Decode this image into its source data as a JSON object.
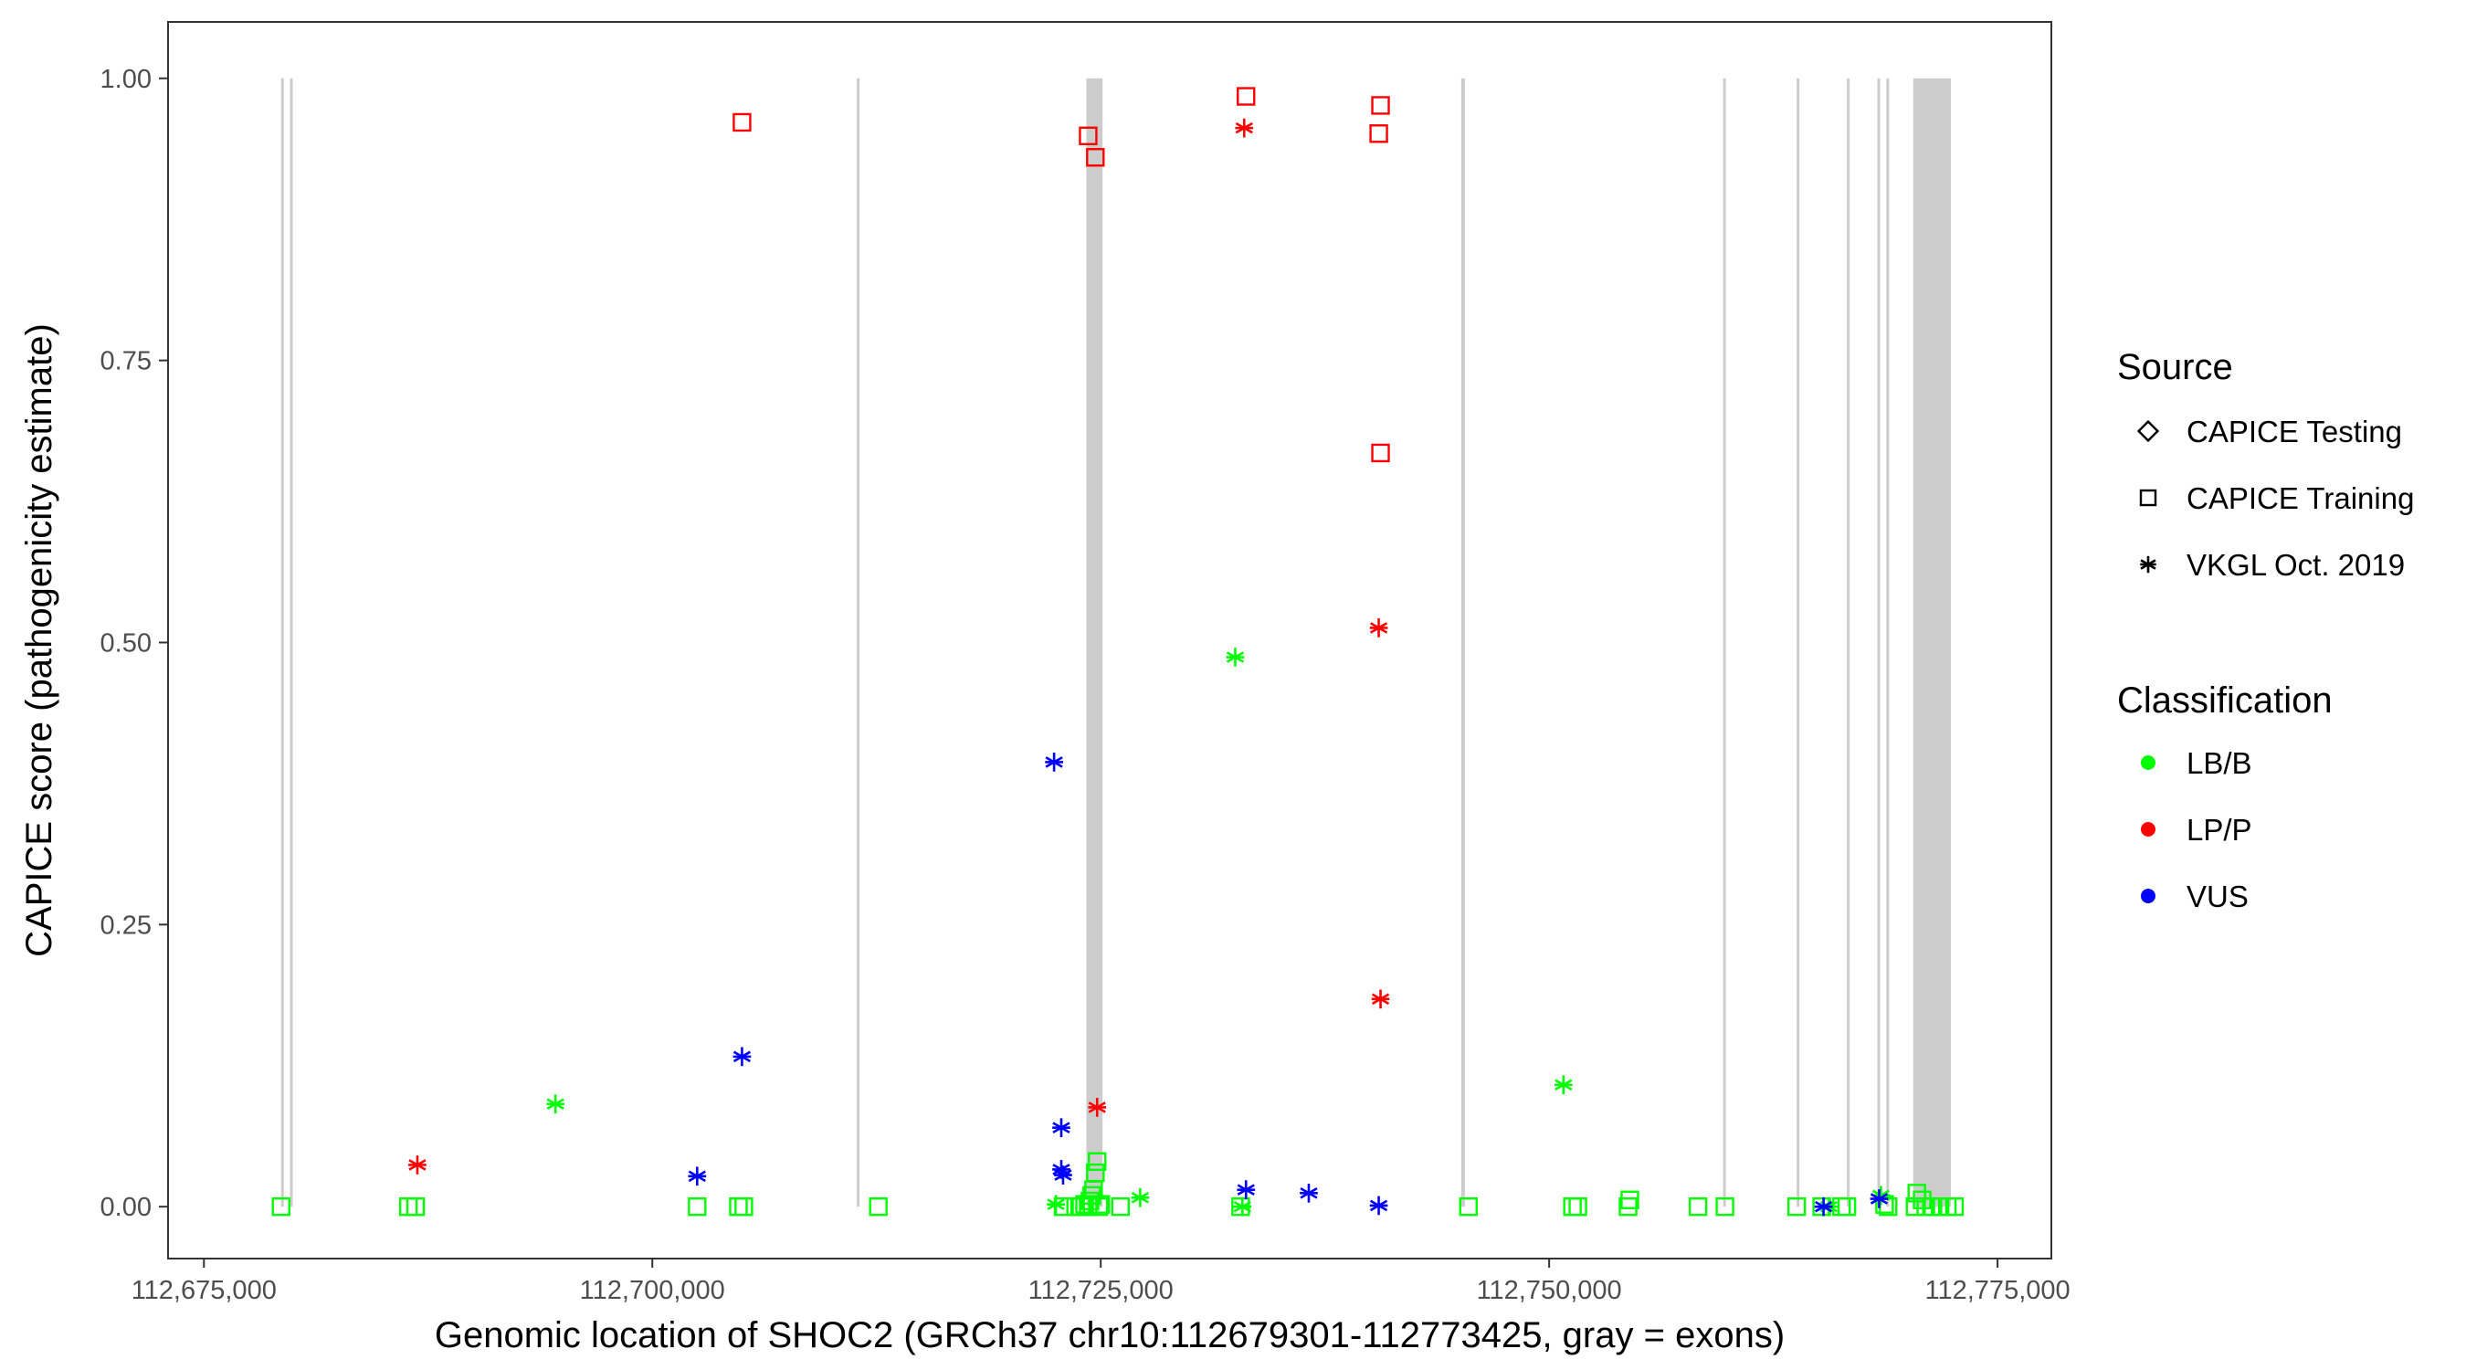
{
  "chart_data": {
    "type": "scatter",
    "title": "",
    "xlabel": "Genomic location of SHOC2 (GRCh37 chr10:112679301-112773425, gray = exons)",
    "ylabel": "CAPICE score (pathogenicity estimate)",
    "xlim": [
      112673000,
      112778000
    ],
    "ylim": [
      -0.046,
      1.05
    ],
    "grid": false,
    "x_ticks": [
      112675000,
      112700000,
      112725000,
      112750000,
      112775000
    ],
    "x_tick_labels": [
      "112,675,000",
      "112,700,000",
      "112,725,000",
      "112,750,000",
      "112,775,000"
    ],
    "y_ticks": [
      0,
      0.25,
      0.5,
      0.75,
      1
    ],
    "y_tick_labels": [
      "0.00",
      "0.25",
      "0.50",
      "0.75",
      "1.00"
    ],
    "exons": [
      [
        112679301,
        112679380
      ],
      [
        112679800,
        112679880
      ],
      [
        112711400,
        112711480
      ],
      [
        112724200,
        112725100
      ],
      [
        112745100,
        112745300
      ],
      [
        112759700,
        112759780
      ],
      [
        112763800,
        112763880
      ],
      [
        112766600,
        112766680
      ],
      [
        112768300,
        112768380
      ],
      [
        112768800,
        112768880
      ],
      [
        112770300,
        112772400
      ]
    ],
    "exon_color": "#cccccc",
    "legend": {
      "placement": "right",
      "shape_title": "Source",
      "shape_entries": [
        {
          "label": "CAPICE Testing",
          "shape": "diamond"
        },
        {
          "label": "CAPICE Training",
          "shape": "square"
        },
        {
          "label": "VKGL Oct. 2019",
          "shape": "asterisk"
        }
      ],
      "color_title": "Classification",
      "color_entries": [
        {
          "label": "LB/B",
          "color": "#00ff00"
        },
        {
          "label": "LP/P",
          "color": "#ff0000"
        },
        {
          "label": "VUS",
          "color": "#0000ff"
        }
      ]
    },
    "series": [
      {
        "source": "CAPICE Training",
        "classification": "LB/B",
        "shape": "square",
        "color": "#00ff00",
        "points": [
          [
            112679300,
            0.0
          ],
          [
            112686400,
            0.0
          ],
          [
            112686800,
            0.0
          ],
          [
            112702500,
            0.0
          ],
          [
            112704800,
            0.0
          ],
          [
            112705100,
            0.0
          ],
          [
            112712600,
            0.0
          ],
          [
            112722900,
            0.0
          ],
          [
            112723600,
            0.0
          ],
          [
            112723900,
            0.0
          ],
          [
            112724100,
            0.002
          ],
          [
            112724300,
            0.0
          ],
          [
            112724400,
            0.005
          ],
          [
            112724500,
            0.01
          ],
          [
            112724600,
            0.015
          ],
          [
            112724700,
            0.03
          ],
          [
            112724800,
            0.04
          ],
          [
            112724900,
            0.0
          ],
          [
            112725000,
            0.002
          ],
          [
            112726100,
            0.0
          ],
          [
            112732800,
            0.0
          ],
          [
            112745500,
            0.0
          ],
          [
            112751300,
            0.0
          ],
          [
            112751600,
            0.0
          ],
          [
            112754400,
            0.0
          ],
          [
            112754500,
            0.006
          ],
          [
            112758300,
            0.0
          ],
          [
            112759800,
            0.0
          ],
          [
            112763800,
            0.0
          ],
          [
            112765200,
            0.0
          ],
          [
            112766300,
            0.0
          ],
          [
            112766600,
            0.0
          ],
          [
            112768700,
            0.002
          ],
          [
            112768900,
            0.0
          ],
          [
            112770400,
            0.0
          ],
          [
            112770500,
            0.012
          ],
          [
            112770800,
            0.006
          ],
          [
            112771000,
            0.0
          ],
          [
            112771400,
            0.0
          ],
          [
            112771800,
            0.0
          ],
          [
            112772200,
            0.0
          ],
          [
            112772600,
            0.0
          ]
        ]
      },
      {
        "source": "CAPICE Training",
        "classification": "LP/P",
        "shape": "square",
        "color": "#ff0000",
        "points": [
          [
            112705000,
            0.961
          ],
          [
            112724300,
            0.949
          ],
          [
            112724700,
            0.93
          ],
          [
            112733100,
            0.984
          ],
          [
            112740600,
            0.976
          ],
          [
            112740500,
            0.951
          ],
          [
            112740600,
            0.668
          ]
        ]
      },
      {
        "source": "VKGL Oct. 2019",
        "classification": "LB/B",
        "shape": "asterisk",
        "color": "#00ff00",
        "points": [
          [
            112694600,
            0.091
          ],
          [
            112722500,
            0.002
          ],
          [
            112727200,
            0.008
          ],
          [
            112732500,
            0.487
          ],
          [
            112732900,
            0.0
          ],
          [
            112750800,
            0.108
          ],
          [
            112765600,
            0.0
          ],
          [
            112768500,
            0.01
          ]
        ]
      },
      {
        "source": "VKGL Oct. 2019",
        "classification": "LP/P",
        "shape": "asterisk",
        "color": "#ff0000",
        "points": [
          [
            112686900,
            0.037
          ],
          [
            112724800,
            0.088
          ],
          [
            112733000,
            0.956
          ],
          [
            112740500,
            0.513
          ],
          [
            112740600,
            0.184
          ]
        ]
      },
      {
        "source": "VKGL Oct. 2019",
        "classification": "VUS",
        "shape": "asterisk",
        "color": "#0000ff",
        "points": [
          [
            112702500,
            0.027
          ],
          [
            112705000,
            0.133
          ],
          [
            112722400,
            0.394
          ],
          [
            112722800,
            0.07
          ],
          [
            112722800,
            0.033
          ],
          [
            112722900,
            0.028
          ],
          [
            112733100,
            0.015
          ],
          [
            112736600,
            0.012
          ],
          [
            112740500,
            0.001
          ],
          [
            112765300,
            0.0
          ],
          [
            112768400,
            0.007
          ]
        ]
      }
    ]
  }
}
